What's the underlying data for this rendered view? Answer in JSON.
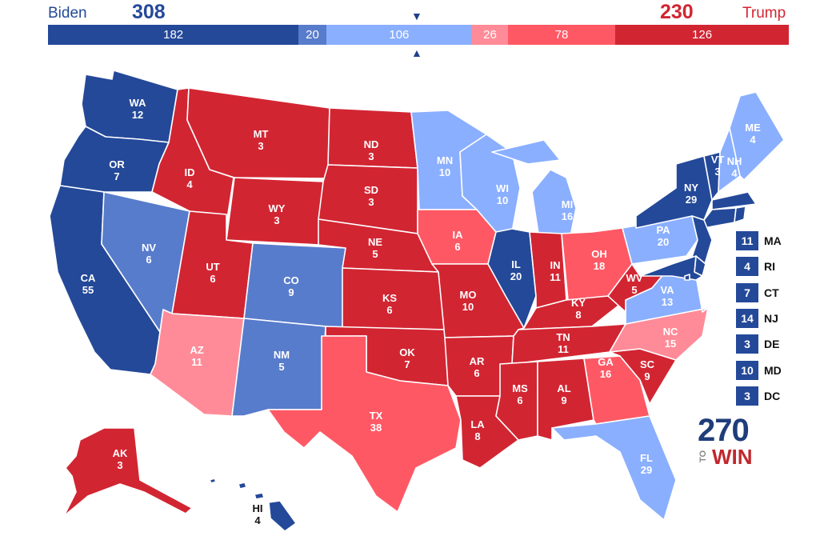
{
  "header": {
    "biden": {
      "name": "Biden",
      "total": "308"
    },
    "trump": {
      "name": "Trump",
      "total": "230"
    }
  },
  "colors": {
    "safe_dem": "#244999",
    "likely_dem": "#587ccc",
    "leans_dem": "#8aafff",
    "leans_rep": "#ff8b98",
    "likely_rep": "#ff5865",
    "safe_rep": "#d22532",
    "background": "#ffffff"
  },
  "bar": [
    {
      "id": "safe-dem",
      "label": "182",
      "value": 182,
      "color": "#244999"
    },
    {
      "id": "likely-dem",
      "label": "20",
      "value": 20,
      "color": "#587ccc"
    },
    {
      "id": "leans-dem",
      "label": "106",
      "value": 106,
      "color": "#8aafff"
    },
    {
      "id": "leans-rep",
      "label": "26",
      "value": 26,
      "color": "#ff8b98"
    },
    {
      "id": "likely-rep",
      "label": "78",
      "value": 78,
      "color": "#ff5865"
    },
    {
      "id": "safe-rep",
      "label": "126",
      "value": 126,
      "color": "#d22532"
    }
  ],
  "states": {
    "WA": {
      "abbr": "WA",
      "ev": "12",
      "color": "#244999"
    },
    "OR": {
      "abbr": "OR",
      "ev": "7",
      "color": "#244999"
    },
    "CA": {
      "abbr": "CA",
      "ev": "55",
      "color": "#244999"
    },
    "NV": {
      "abbr": "NV",
      "ev": "6",
      "color": "#587ccc"
    },
    "ID": {
      "abbr": "ID",
      "ev": "4",
      "color": "#d22532"
    },
    "MT": {
      "abbr": "MT",
      "ev": "3",
      "color": "#d22532"
    },
    "WY": {
      "abbr": "WY",
      "ev": "3",
      "color": "#d22532"
    },
    "UT": {
      "abbr": "UT",
      "ev": "6",
      "color": "#d22532"
    },
    "AZ": {
      "abbr": "AZ",
      "ev": "11",
      "color": "#ff8b98"
    },
    "CO": {
      "abbr": "CO",
      "ev": "9",
      "color": "#587ccc"
    },
    "NM": {
      "abbr": "NM",
      "ev": "5",
      "color": "#587ccc"
    },
    "ND": {
      "abbr": "ND",
      "ev": "3",
      "color": "#d22532"
    },
    "SD": {
      "abbr": "SD",
      "ev": "3",
      "color": "#d22532"
    },
    "NE": {
      "abbr": "NE",
      "ev": "5",
      "color": "#d22532"
    },
    "KS": {
      "abbr": "KS",
      "ev": "6",
      "color": "#d22532"
    },
    "OK": {
      "abbr": "OK",
      "ev": "7",
      "color": "#d22532"
    },
    "TX": {
      "abbr": "TX",
      "ev": "38",
      "color": "#ff5865"
    },
    "MN": {
      "abbr": "MN",
      "ev": "10",
      "color": "#8aafff"
    },
    "IA": {
      "abbr": "IA",
      "ev": "6",
      "color": "#ff5865"
    },
    "MO": {
      "abbr": "MO",
      "ev": "10",
      "color": "#d22532"
    },
    "AR": {
      "abbr": "AR",
      "ev": "6",
      "color": "#d22532"
    },
    "LA": {
      "abbr": "LA",
      "ev": "8",
      "color": "#d22532"
    },
    "WI": {
      "abbr": "WI",
      "ev": "10",
      "color": "#8aafff"
    },
    "IL": {
      "abbr": "IL",
      "ev": "20",
      "color": "#244999"
    },
    "MI": {
      "abbr": "MI",
      "ev": "16",
      "color": "#8aafff"
    },
    "IN": {
      "abbr": "IN",
      "ev": "11",
      "color": "#d22532"
    },
    "OH": {
      "abbr": "OH",
      "ev": "18",
      "color": "#ff5865"
    },
    "KY": {
      "abbr": "KY",
      "ev": "8",
      "color": "#d22532"
    },
    "TN": {
      "abbr": "TN",
      "ev": "11",
      "color": "#d22532"
    },
    "MS": {
      "abbr": "MS",
      "ev": "6",
      "color": "#d22532"
    },
    "AL": {
      "abbr": "AL",
      "ev": "9",
      "color": "#d22532"
    },
    "GA": {
      "abbr": "GA",
      "ev": "16",
      "color": "#ff5865"
    },
    "FL": {
      "abbr": "FL",
      "ev": "29",
      "color": "#8aafff"
    },
    "SC": {
      "abbr": "SC",
      "ev": "9",
      "color": "#d22532"
    },
    "NC": {
      "abbr": "NC",
      "ev": "15",
      "color": "#ff8b98"
    },
    "VA": {
      "abbr": "VA",
      "ev": "13",
      "color": "#8aafff"
    },
    "WV": {
      "abbr": "WV",
      "ev": "5",
      "color": "#d22532"
    },
    "PA": {
      "abbr": "PA",
      "ev": "20",
      "color": "#8aafff"
    },
    "NY": {
      "abbr": "NY",
      "ev": "29",
      "color": "#244999"
    },
    "VT": {
      "abbr": "VT",
      "ev": "3",
      "color": "#244999"
    },
    "NH": {
      "abbr": "NH",
      "ev": "4",
      "color": "#8aafff"
    },
    "ME": {
      "abbr": "ME",
      "ev": "4",
      "color": "#8aafff"
    },
    "AK": {
      "abbr": "AK",
      "ev": "3",
      "color": "#d22532"
    },
    "HI": {
      "abbr": "HI",
      "ev": "4",
      "color": "#244999"
    },
    "MA": {
      "abbr": "MA",
      "ev": "11",
      "color": "#244999"
    },
    "RI": {
      "abbr": "RI",
      "ev": "4",
      "color": "#244999"
    },
    "CT": {
      "abbr": "CT",
      "ev": "7",
      "color": "#244999"
    },
    "NJ": {
      "abbr": "NJ",
      "ev": "14",
      "color": "#244999"
    },
    "DE": {
      "abbr": "DE",
      "ev": "3",
      "color": "#244999"
    },
    "MD": {
      "abbr": "MD",
      "ev": "10",
      "color": "#244999"
    },
    "DC": {
      "abbr": "DC",
      "ev": "3",
      "color": "#244999"
    }
  },
  "small_states_list": [
    "MA",
    "RI",
    "CT",
    "NJ",
    "DE",
    "MD",
    "DC"
  ],
  "logo": {
    "number": "270",
    "to": "TO",
    "win": "WIN"
  }
}
